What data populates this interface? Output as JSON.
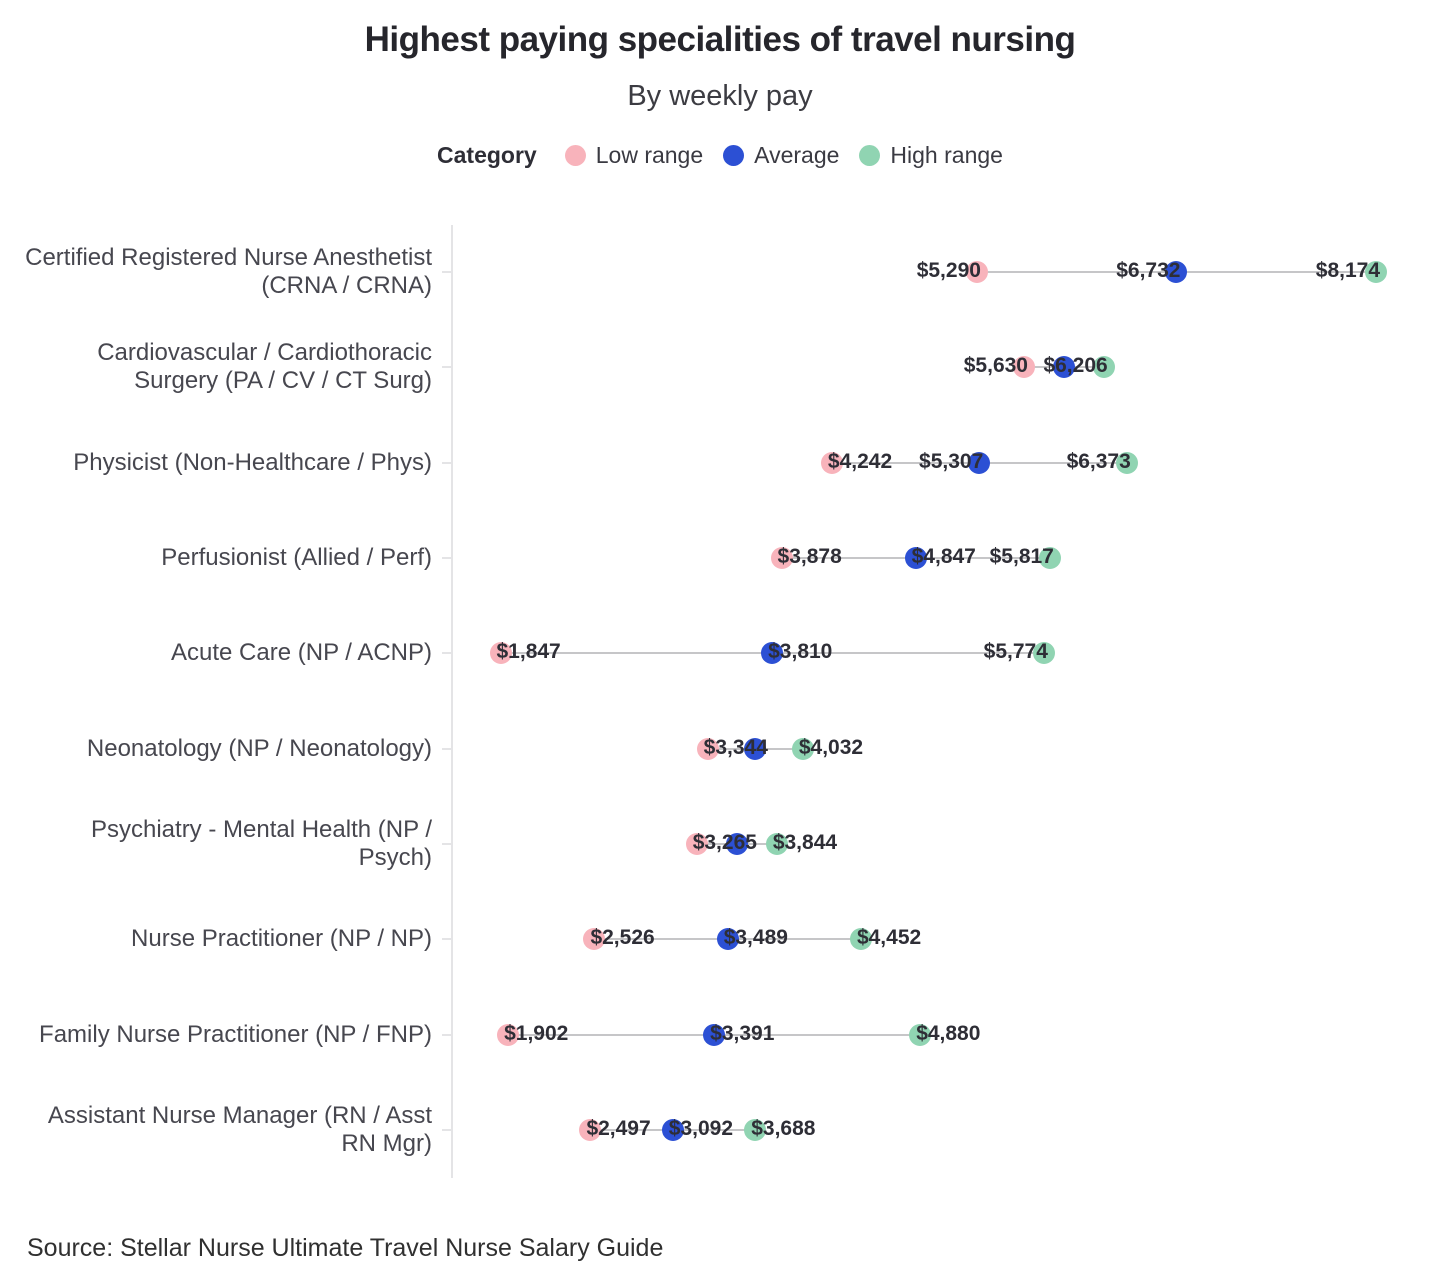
{
  "chart_data": {
    "type": "dumbbell",
    "title": "Highest paying specialities of travel nursing",
    "subtitle": "By weekly pay",
    "legend": {
      "title": "Category",
      "items": [
        {
          "label": "Low range",
          "color": "#f8b3bb"
        },
        {
          "label": "Average",
          "color": "#2c50d4"
        },
        {
          "label": "High range",
          "color": "#90d4b2"
        }
      ]
    },
    "colors": {
      "low": "#f8b3bb",
      "average": "#2c50d4",
      "high": "#90d4b2",
      "connector": "#c6c6c8",
      "axis": "#e4e4e6"
    },
    "value_unit": "USD weekly pay",
    "xlim": [
      1847,
      8174
    ],
    "grid": false,
    "legend_position": "top",
    "rows": [
      {
        "label": "Certified Registered Nurse Anesthetist (CRNA / CRNA)",
        "low": 5290,
        "average": 6732,
        "high": 8174,
        "average_label_visible": true
      },
      {
        "label": "Cardiovascular / Cardiothoracic Surgery (PA / CV / CT Surg)",
        "low": 5630,
        "average": 5918,
        "high": 6206,
        "average_label_visible": false
      },
      {
        "label": "Physicist (Non-Healthcare / Phys)",
        "low": 4242,
        "average": 5307,
        "high": 6373,
        "average_label_visible": true
      },
      {
        "label": "Perfusionist (Allied / Perf)",
        "low": 3878,
        "average": 4847,
        "high": 5817,
        "average_label_visible": true
      },
      {
        "label": "Acute Care (NP / ACNP)",
        "low": 1847,
        "average": 3810,
        "high": 5774,
        "average_label_visible": true
      },
      {
        "label": "Neonatology (NP / Neonatology)",
        "low": 3344,
        "average": 3688,
        "high": 4032,
        "average_label_visible": false
      },
      {
        "label": "Psychiatry - Mental Health (NP / Psych)",
        "low": 3265,
        "average": 3554,
        "high": 3844,
        "average_label_visible": false
      },
      {
        "label": "Nurse Practitioner (NP / NP)",
        "low": 2526,
        "average": 3489,
        "high": 4452,
        "average_label_visible": true
      },
      {
        "label": "Family Nurse Practitioner (NP / FNP)",
        "low": 1902,
        "average": 3391,
        "high": 4880,
        "average_label_visible": true
      },
      {
        "label": "Assistant Nurse Manager (RN / Asst RN Mgr)",
        "low": 2497,
        "average": 3092,
        "high": 3688,
        "average_label_visible": true
      }
    ]
  },
  "source_note": "Source: Stellar Nurse Ultimate Travel Nurse Salary Guide"
}
